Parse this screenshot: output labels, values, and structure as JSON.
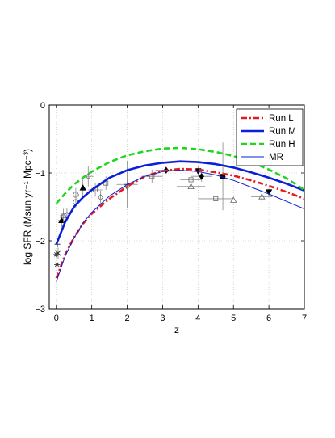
{
  "chart_data": {
    "type": "line",
    "title": "",
    "xlabel": "z",
    "ylabel": "log SFR (Msun yr⁻¹ Mpc⁻³)",
    "xlim": [
      -0.2,
      7
    ],
    "ylim": [
      -3,
      0
    ],
    "x_ticks": [
      0,
      1,
      2,
      3,
      4,
      5,
      6,
      7
    ],
    "y_ticks": [
      -3,
      -2,
      -1,
      0
    ],
    "x_tick_labels": [
      "0",
      "1",
      "2",
      "3",
      "4",
      "5",
      "6",
      "7"
    ],
    "y_tick_labels": [
      "−3",
      "−2",
      "−1",
      "0"
    ],
    "grid": true,
    "legend_position": "top-right",
    "series": [
      {
        "name": "Run L",
        "color": "#e41a1c",
        "style": "dash-dot",
        "width": "thick",
        "x": [
          0,
          0.25,
          0.5,
          0.75,
          1,
          1.5,
          2,
          2.5,
          3,
          3.5,
          4,
          4.5,
          5,
          5.5,
          6,
          6.5,
          7
        ],
        "y": [
          -2.55,
          -2.2,
          -1.95,
          -1.75,
          -1.6,
          -1.38,
          -1.2,
          -1.05,
          -0.97,
          -0.94,
          -0.95,
          -0.99,
          -1.04,
          -1.11,
          -1.19,
          -1.28,
          -1.38
        ]
      },
      {
        "name": "Run M",
        "color": "#0a1fd6",
        "style": "solid",
        "width": "thick",
        "x": [
          0,
          0.25,
          0.5,
          0.75,
          1,
          1.5,
          2,
          2.5,
          3,
          3.5,
          4,
          4.5,
          5,
          5.5,
          6,
          6.5,
          7
        ],
        "y": [
          -2.05,
          -1.72,
          -1.5,
          -1.36,
          -1.25,
          -1.07,
          -0.96,
          -0.89,
          -0.85,
          -0.83,
          -0.84,
          -0.87,
          -0.92,
          -0.99,
          -1.07,
          -1.16,
          -1.26
        ]
      },
      {
        "name": "Run H",
        "color": "#1fd61f",
        "style": "dashed",
        "width": "thick",
        "x": [
          0,
          0.25,
          0.5,
          0.75,
          1,
          1.5,
          2,
          2.5,
          3,
          3.5,
          4,
          4.5,
          5,
          5.5,
          6,
          6.5,
          7
        ],
        "y": [
          -1.45,
          -1.3,
          -1.17,
          -1.07,
          -0.98,
          -0.84,
          -0.74,
          -0.68,
          -0.64,
          -0.63,
          -0.65,
          -0.69,
          -0.75,
          -0.84,
          -0.95,
          -1.08,
          -1.25
        ]
      },
      {
        "name": "MR",
        "color": "#0a1fd6",
        "style": "solid",
        "width": "thin",
        "x": [
          0,
          0.25,
          0.5,
          0.75,
          1,
          1.5,
          2,
          2.5,
          3,
          3.5,
          4,
          4.5,
          5,
          5.5,
          6,
          6.5,
          7
        ],
        "y": [
          -2.6,
          -2.22,
          -1.96,
          -1.74,
          -1.58,
          -1.34,
          -1.17,
          -1.05,
          -0.98,
          -0.96,
          -0.98,
          -1.03,
          -1.11,
          -1.21,
          -1.31,
          -1.42,
          -1.53
        ]
      }
    ],
    "observations": [
      {
        "marker": "star",
        "x": 0.0,
        "y": -2.2,
        "xerr": 0,
        "yerr": 0
      },
      {
        "marker": "asterisk",
        "x": 0.02,
        "y": -2.35,
        "xerr": 0,
        "yerr": 0
      },
      {
        "marker": "plus",
        "x": 0.03,
        "y": -2.05,
        "xerr": 0,
        "yerr": 0
      },
      {
        "marker": "cross",
        "x": 0.05,
        "y": -2.18,
        "xerr": 0,
        "yerr": 0.08
      },
      {
        "marker": "filled-triangle-up",
        "x": 0.15,
        "y": -1.7,
        "xerr": 0.1,
        "yerr": 0.1
      },
      {
        "marker": "open-triangle-up",
        "x": 0.2,
        "y": -1.63,
        "xerr": 0.1,
        "yerr": 0.1
      },
      {
        "marker": "open-diamond",
        "x": 0.3,
        "y": -1.62,
        "xerr": 0,
        "yerr": 0.1
      },
      {
        "marker": "open-hexagon",
        "x": 0.55,
        "y": -1.32,
        "xerr": 0,
        "yerr": 0.1
      },
      {
        "marker": "open-hexagon",
        "x": 0.55,
        "y": -1.43,
        "xerr": 0,
        "yerr": 0.08
      },
      {
        "marker": "filled-triangle-up",
        "x": 0.75,
        "y": -1.22,
        "xerr": 0,
        "yerr": 0.15
      },
      {
        "marker": "open-diamond",
        "x": 0.9,
        "y": -1.05,
        "xerr": 0.15,
        "yerr": 0.15
      },
      {
        "marker": "open-square",
        "x": 1.1,
        "y": -1.25,
        "xerr": 0.2,
        "yerr": 0.1
      },
      {
        "marker": "open-square",
        "x": 1.4,
        "y": -1.15,
        "xerr": 0.2,
        "yerr": 0.1
      },
      {
        "marker": "open-diamond",
        "x": 1.25,
        "y": -1.36,
        "xerr": 0,
        "yerr": 0.1
      },
      {
        "marker": "plus",
        "x": 2.0,
        "y": -1.17,
        "xerr": 0.3,
        "yerr": 0.35
      },
      {
        "marker": "open-diamond",
        "x": 2.0,
        "y": -1.2,
        "xerr": 0,
        "yerr": 0.1
      },
      {
        "marker": "open-square",
        "x": 2.7,
        "y": -1.05,
        "xerr": 0.3,
        "yerr": 0.1
      },
      {
        "marker": "filled-diamond",
        "x": 3.1,
        "y": -0.96,
        "xerr": 0.3,
        "yerr": 0.05
      },
      {
        "marker": "open-square",
        "x": 3.8,
        "y": -1.1,
        "xerr": 0.3,
        "yerr": 0.1
      },
      {
        "marker": "open-triangle-up",
        "x": 3.8,
        "y": -1.2,
        "xerr": 0.4,
        "yerr": 0
      },
      {
        "marker": "filled-triangle-down",
        "x": 4.0,
        "y": -0.97,
        "xerr": 0.3,
        "yerr": 0.08
      },
      {
        "marker": "filled-diamond",
        "x": 4.1,
        "y": -1.05,
        "xerr": 0.3,
        "yerr": 0.08
      },
      {
        "marker": "filled-square",
        "x": 4.7,
        "y": -1.05,
        "xerr": 0.1,
        "yerr": 0.5
      },
      {
        "marker": "open-square",
        "x": 4.5,
        "y": -1.38,
        "xerr": 0.5,
        "yerr": 0
      },
      {
        "marker": "open-triangle-up",
        "x": 5.0,
        "y": -1.4,
        "xerr": 0.4,
        "yerr": 0
      },
      {
        "marker": "open-triangle-up",
        "x": 5.8,
        "y": -1.35,
        "xerr": 0.3,
        "yerr": 0.1
      },
      {
        "marker": "filled-triangle-down",
        "x": 6.0,
        "y": -1.28,
        "xerr": 0.3,
        "yerr": 0.05
      }
    ]
  }
}
